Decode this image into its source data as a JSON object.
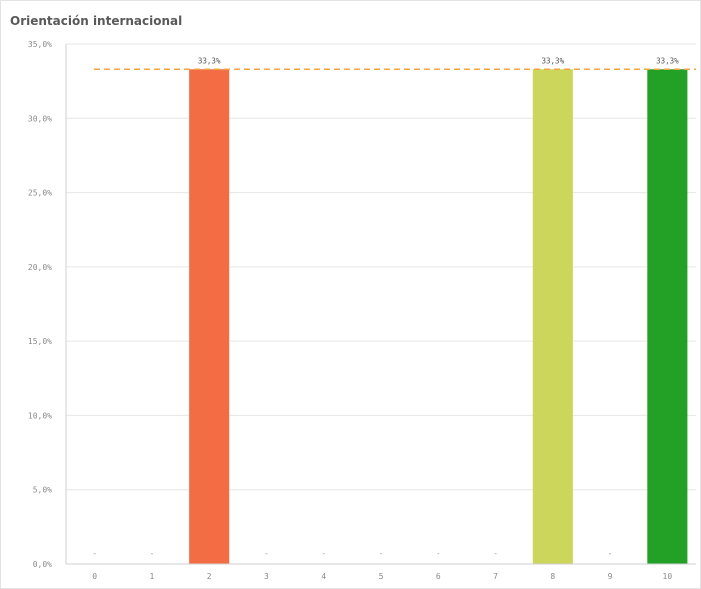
{
  "chart_data": {
    "type": "bar",
    "title": "Orientación internacional",
    "categories": [
      "0",
      "1",
      "2",
      "3",
      "4",
      "5",
      "6",
      "7",
      "8",
      "9",
      "10"
    ],
    "values": [
      0,
      0,
      33.3,
      0,
      0,
      0,
      0,
      0,
      33.3,
      0,
      33.3
    ],
    "data_labels": [
      "-",
      "-",
      "33,3%",
      "-",
      "-",
      "-",
      "-",
      "-",
      "33,3%",
      "-",
      "33,3%"
    ],
    "bar_colors": [
      "#f36d44",
      "#f36d44",
      "#f36d44",
      "#f36d44",
      "#f36d44",
      "#f36d44",
      "#f36d44",
      "#f36d44",
      "#cbd65a",
      "#cbd65a",
      "#22a126"
    ],
    "yticks": [
      0,
      5,
      10,
      15,
      20,
      25,
      30,
      35
    ],
    "ytick_labels": [
      "0,0%",
      "5,0%",
      "10,0%",
      "15,0%",
      "20,0%",
      "25,0%",
      "30,0%",
      "35,0%"
    ],
    "ylim": [
      0,
      35
    ],
    "reference_line": {
      "value": 33.3,
      "color": "#f2a541",
      "style": "dashed"
    },
    "grid": true,
    "xlabel": "",
    "ylabel": ""
  }
}
